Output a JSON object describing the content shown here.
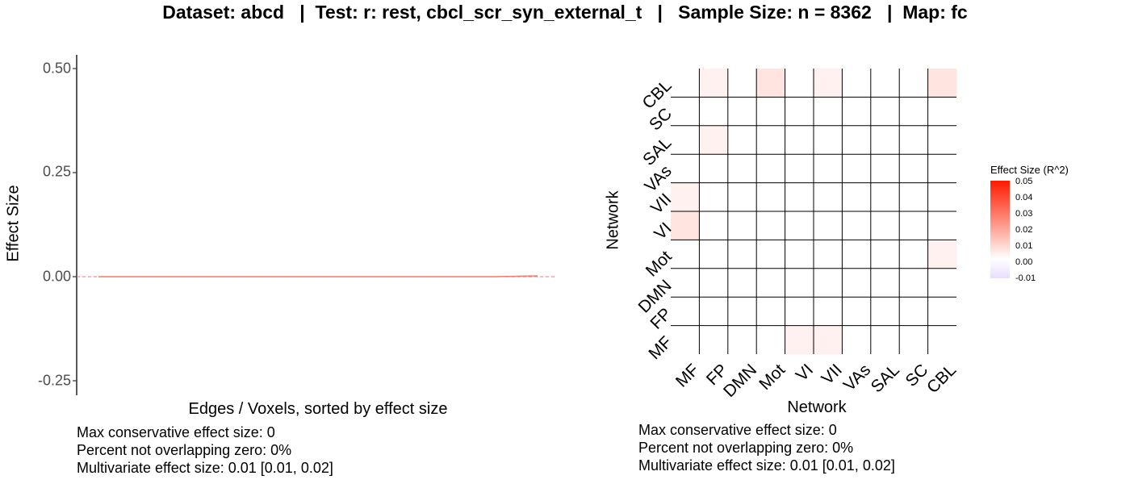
{
  "title": "Dataset: abcd   |  Test: r: rest, cbcl_scr_syn_external_t   |   Sample Size: n = 8362   |  Map: fc",
  "left_footer": [
    "Max conservative effect size: 0",
    "Percent not overlapping zero: 0%",
    "Multivariate effect size: 0.01 [0.01, 0.02]"
  ],
  "right_footer": [
    "Max conservative effect size: 0",
    "Percent not overlapping zero: 0%",
    "Multivariate effect size: 0.01 [0.01, 0.02]"
  ],
  "legend": {
    "title": "Effect Size (R^2)",
    "ticks": [
      "0.05",
      "0.04",
      "0.03",
      "0.02",
      "0.01",
      "0.00",
      "-0.01"
    ]
  },
  "chart_data": [
    {
      "type": "line",
      "title": "",
      "xlabel": "Edges / Voxels, sorted by effect size",
      "ylabel": "Effect Size",
      "ylim": [
        -0.27,
        0.53
      ],
      "yticks": [
        "0.50",
        "0.25",
        "0.00",
        "-0.25"
      ],
      "reference_line": 0,
      "series": [
        {
          "x": [
            0,
            0.5,
            0.9,
            0.95,
            1.0
          ],
          "y": [
            0.0,
            0.0,
            0.0,
            0.001,
            0.002
          ]
        }
      ],
      "grid": false
    },
    {
      "type": "heatmap",
      "xlabel": "Network",
      "ylabel": "Network",
      "categories": [
        "MF",
        "FP",
        "DMN",
        "Mot",
        "VI",
        "VII",
        "VAs",
        "SAL",
        "SC",
        "CBL"
      ],
      "legend_position": "right",
      "values": [
        [
          0.0,
          0.0,
          0.0,
          0.0,
          0.001,
          0.001,
          0.0,
          0.0,
          0.0,
          0.0
        ],
        [
          0.0,
          0.0,
          0.0,
          0.0,
          0.0,
          0.0,
          0.0,
          0.0,
          0.0,
          0.0
        ],
        [
          0.0,
          0.0,
          0.0,
          0.0,
          0.0,
          0.0,
          0.0,
          0.0,
          0.0,
          0.0
        ],
        [
          0.0,
          0.0,
          0.0,
          0.0,
          0.0,
          0.0,
          0.0,
          0.0,
          0.0,
          0.001
        ],
        [
          0.002,
          0.0,
          0.0,
          0.0,
          0.0,
          0.0,
          0.0,
          0.0,
          0.0,
          0.0
        ],
        [
          0.001,
          0.0,
          0.0,
          0.0,
          0.0,
          0.0,
          0.0,
          0.0,
          0.0,
          0.0
        ],
        [
          0.0,
          0.0,
          0.0,
          0.0,
          0.0,
          0.0,
          0.0,
          0.0,
          0.0,
          0.0
        ],
        [
          0.0,
          0.001,
          0.0,
          0.0,
          0.0,
          0.0,
          0.0,
          0.0,
          0.0,
          0.0
        ],
        [
          0.0,
          0.0,
          0.0,
          0.0,
          0.0,
          0.0,
          0.0,
          0.0,
          0.0,
          0.0
        ],
        [
          0.0,
          0.001,
          0.0,
          0.002,
          0.0,
          0.001,
          0.0,
          0.0,
          0.0,
          0.002
        ]
      ],
      "colors": {
        "high": "#ff1a00",
        "mid": "#ffffff",
        "low": "#e8ddff"
      },
      "value_range": [
        -0.01,
        0.05
      ]
    }
  ]
}
